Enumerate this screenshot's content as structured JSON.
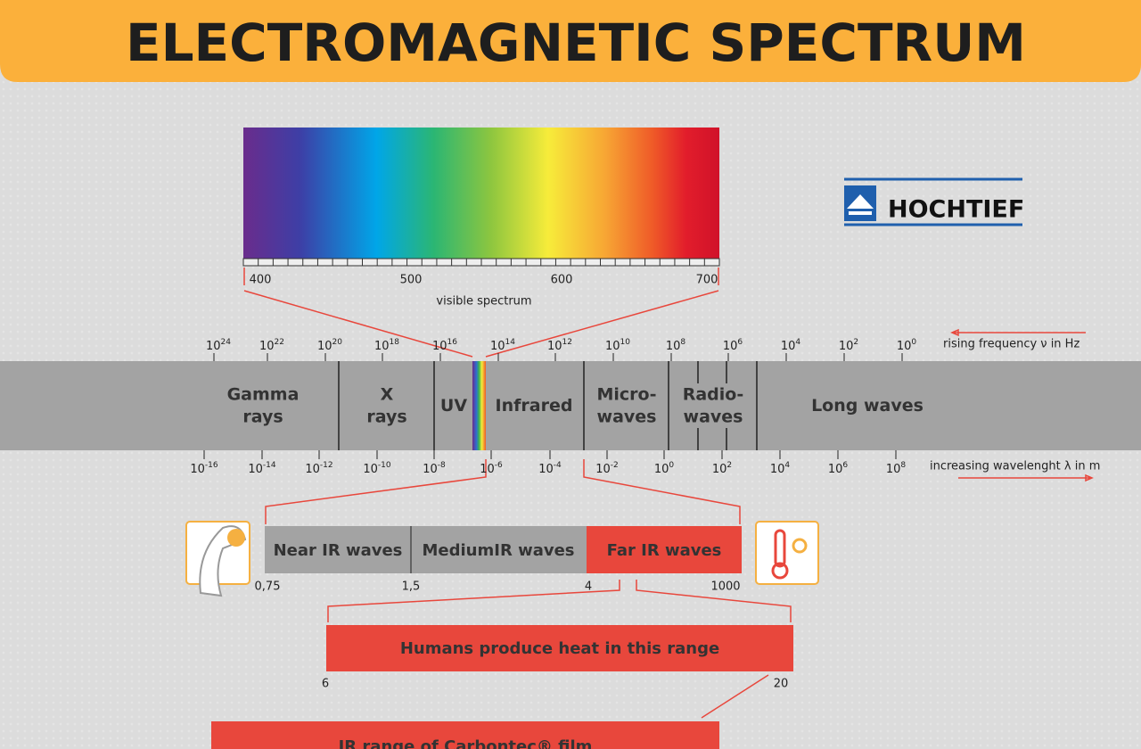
{
  "header": {
    "title": "ELECTROMAGNETIC SPECTRUM"
  },
  "logo": {
    "text": "HOCHTIEF"
  },
  "visible": {
    "ticks": [
      "400",
      "500",
      "600",
      "700"
    ],
    "caption": "visible spectrum"
  },
  "frequency": {
    "ticks": [
      {
        "base": "10",
        "exp": "24"
      },
      {
        "base": "10",
        "exp": "22"
      },
      {
        "base": "10",
        "exp": "20"
      },
      {
        "base": "10",
        "exp": "18"
      },
      {
        "base": "10",
        "exp": "16"
      },
      {
        "base": "10",
        "exp": "14"
      },
      {
        "base": "10",
        "exp": "12"
      },
      {
        "base": "10",
        "exp": "10"
      },
      {
        "base": "10",
        "exp": "8"
      },
      {
        "base": "10",
        "exp": "6"
      },
      {
        "base": "10",
        "exp": "4"
      },
      {
        "base": "10",
        "exp": "2"
      },
      {
        "base": "10",
        "exp": "0"
      }
    ],
    "caption": "rising frequency ν in Hz"
  },
  "bands": [
    {
      "lines": [
        "Gamma",
        "rays"
      ]
    },
    {
      "lines": [
        "X",
        "rays"
      ]
    },
    {
      "lines": [
        "UV"
      ]
    },
    {
      "lines": [
        "Infrared"
      ]
    },
    {
      "lines": [
        "Micro-",
        "waves"
      ]
    },
    {
      "lines": [
        "Radio-",
        "waves"
      ]
    },
    {
      "lines": [
        "Long waves"
      ]
    }
  ],
  "wavelength": {
    "ticks": [
      {
        "base": "10",
        "exp": "-16"
      },
      {
        "base": "10",
        "exp": "-14"
      },
      {
        "base": "10",
        "exp": "-12"
      },
      {
        "base": "10",
        "exp": "-10"
      },
      {
        "base": "10",
        "exp": "-8"
      },
      {
        "base": "10",
        "exp": "-6"
      },
      {
        "base": "10",
        "exp": "-4"
      },
      {
        "base": "10",
        "exp": "-2"
      },
      {
        "base": "10",
        "exp": "0"
      },
      {
        "base": "10",
        "exp": "2"
      },
      {
        "base": "10",
        "exp": "4"
      },
      {
        "base": "10",
        "exp": "6"
      },
      {
        "base": "10",
        "exp": "8"
      }
    ],
    "caption": "increasing wavelenght λ in m"
  },
  "infrared": {
    "segments": [
      "Near IR waves",
      "MediumIR waves",
      "Far IR waves"
    ],
    "ticks": [
      "0,75",
      "1,5",
      "4",
      "1000"
    ]
  },
  "humans": {
    "label": "Humans produce heat in this range",
    "ticks": [
      "6",
      "20"
    ]
  },
  "carbontec": {
    "label": "IR range of Carbontec® film"
  }
}
